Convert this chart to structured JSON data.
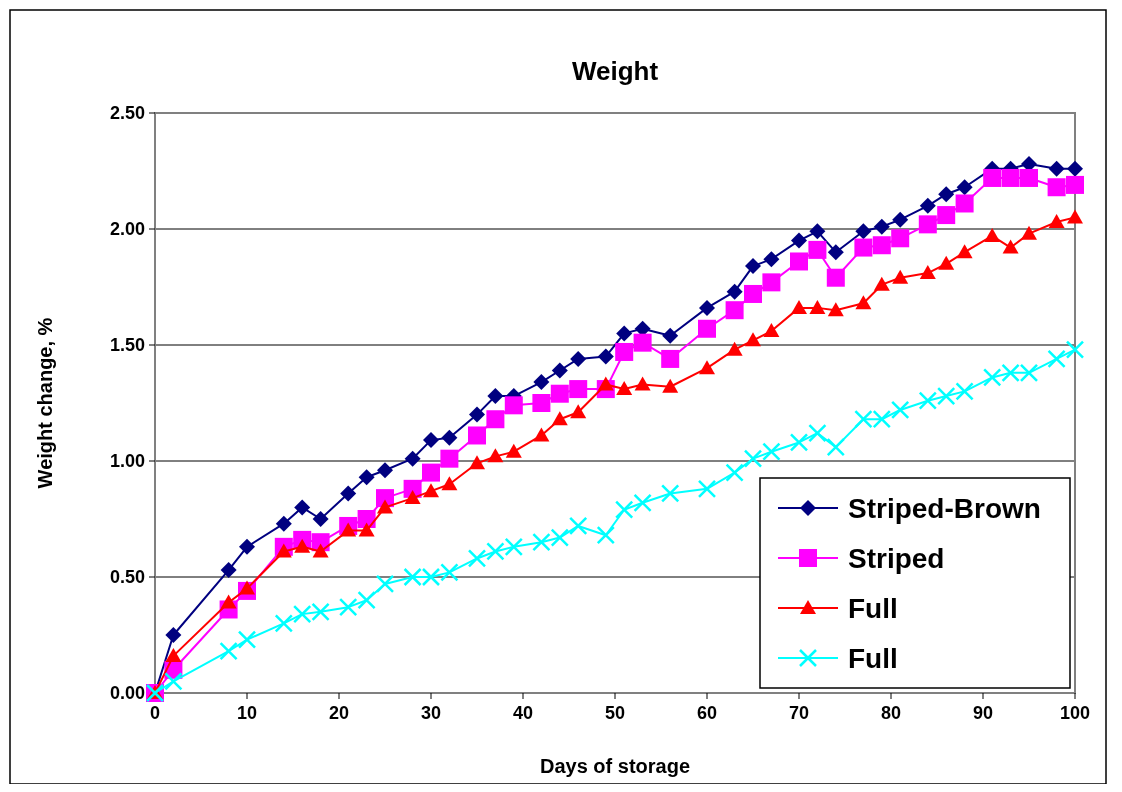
{
  "chart_data": {
    "type": "line",
    "title": "Weight",
    "xlabel": "Days of storage",
    "ylabel": "Weight change, %",
    "x": [
      0,
      2,
      8,
      10,
      14,
      16,
      18,
      21,
      23,
      25,
      28,
      30,
      32,
      35,
      37,
      39,
      42,
      44,
      46,
      49,
      51,
      53,
      56,
      60,
      63,
      65,
      67,
      70,
      72,
      74,
      77,
      79,
      81,
      84,
      86,
      88,
      91,
      93,
      95,
      98,
      100
    ],
    "series": [
      {
        "name": "Striped-Brown",
        "color": "#000080",
        "marker": "diamond",
        "values": [
          0,
          0.25,
          0.53,
          0.63,
          0.73,
          0.8,
          0.75,
          0.86,
          0.93,
          0.96,
          1.01,
          1.09,
          1.1,
          1.2,
          1.28,
          1.28,
          1.34,
          1.39,
          1.44,
          1.45,
          1.55,
          1.57,
          1.54,
          1.66,
          1.73,
          1.84,
          1.87,
          1.95,
          1.99,
          1.9,
          1.99,
          2.01,
          2.04,
          2.1,
          2.15,
          2.18,
          2.26,
          2.26,
          2.28,
          2.26,
          2.26
        ]
      },
      {
        "name": "Striped",
        "color": "#ff00ff",
        "marker": "square",
        "values": [
          0,
          0.1,
          0.36,
          0.44,
          0.63,
          0.66,
          0.65,
          0.72,
          0.75,
          0.84,
          0.88,
          0.95,
          1.01,
          1.11,
          1.18,
          1.24,
          1.25,
          1.29,
          1.31,
          1.31,
          1.47,
          1.51,
          1.44,
          1.57,
          1.65,
          1.72,
          1.77,
          1.86,
          1.91,
          1.79,
          1.92,
          1.93,
          1.96,
          2.02,
          2.06,
          2.11,
          2.22,
          2.22,
          2.22,
          2.18,
          2.19
        ]
      },
      {
        "name": "Full",
        "color": "#ff0000",
        "marker": "triangle",
        "values": [
          0,
          0.16,
          0.39,
          0.45,
          0.61,
          0.63,
          0.61,
          0.7,
          0.7,
          0.8,
          0.84,
          0.87,
          0.9,
          0.99,
          1.02,
          1.04,
          1.11,
          1.18,
          1.21,
          1.33,
          1.31,
          1.33,
          1.32,
          1.4,
          1.48,
          1.52,
          1.56,
          1.66,
          1.66,
          1.65,
          1.68,
          1.76,
          1.79,
          1.81,
          1.85,
          1.9,
          1.97,
          1.92,
          1.98,
          2.03,
          2.05
        ]
      },
      {
        "name": "Full",
        "color": "#00ffff",
        "marker": "cross",
        "values": [
          0,
          0.05,
          0.18,
          0.23,
          0.3,
          0.34,
          0.35,
          0.37,
          0.4,
          0.47,
          0.5,
          0.5,
          0.52,
          0.58,
          0.61,
          0.63,
          0.65,
          0.67,
          0.72,
          0.68,
          0.79,
          0.82,
          0.86,
          0.88,
          0.95,
          1.01,
          1.04,
          1.08,
          1.12,
          1.06,
          1.18,
          1.18,
          1.22,
          1.26,
          1.28,
          1.3,
          1.36,
          1.38,
          1.38,
          1.44,
          1.48
        ]
      }
    ],
    "xlim": [
      0,
      100
    ],
    "xticks": [
      0,
      10,
      20,
      30,
      40,
      50,
      60,
      70,
      80,
      90,
      100
    ],
    "ylim": [
      0,
      2.5
    ],
    "yticks": [
      {
        "value": 0,
        "label": "0.00"
      },
      {
        "value": 0.5,
        "label": "0.50"
      },
      {
        "value": 1,
        "label": "1.00"
      },
      {
        "value": 1.5,
        "label": "1.50"
      },
      {
        "value": 2,
        "label": "2.00"
      },
      {
        "value": 2.5,
        "label": "2.50"
      }
    ],
    "grid": "y",
    "legend": "bottom right"
  }
}
